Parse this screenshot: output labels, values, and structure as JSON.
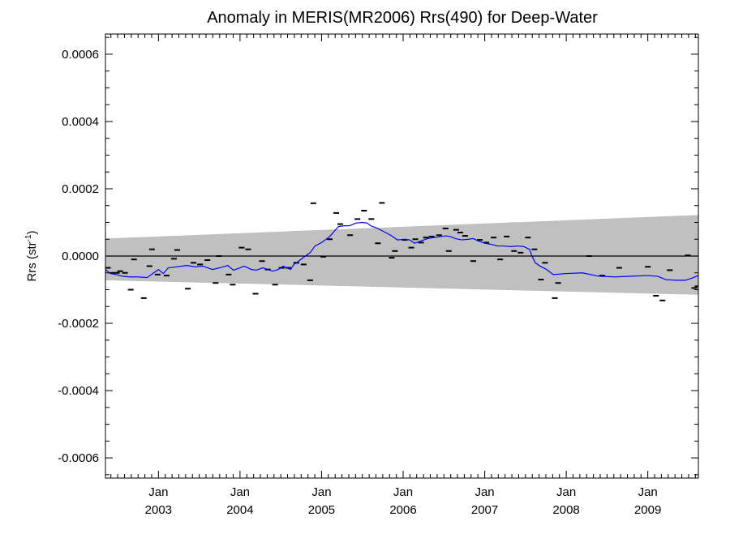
{
  "chart_data": {
    "type": "line",
    "title": "Anomaly in MERIS(MR2006) Rrs(490) for Deep-Water",
    "ylabel_main": "Rrs (str",
    "ylabel_sup": "-1",
    "ylabel_close": ")",
    "xlabel": "",
    "xlim": [
      2002.35,
      2009.62
    ],
    "ylim": [
      -0.00066,
      0.00066
    ],
    "grid": false,
    "y_ticks": [
      {
        "value": -0.0006,
        "label": "-0.0006"
      },
      {
        "value": -0.0004,
        "label": "-0.0004"
      },
      {
        "value": -0.0002,
        "label": "-0.0002"
      },
      {
        "value": 0.0,
        "label": "0.0000"
      },
      {
        "value": 0.0002,
        "label": "0.0002"
      },
      {
        "value": 0.0004,
        "label": "0.0004"
      },
      {
        "value": 0.0006,
        "label": "0.0006"
      }
    ],
    "x_ticks": [
      {
        "value": 2003.0,
        "month": "Jan",
        "year": "2003"
      },
      {
        "value": 2004.0,
        "month": "Jan",
        "year": "2004"
      },
      {
        "value": 2005.0,
        "month": "Jan",
        "year": "2005"
      },
      {
        "value": 2006.0,
        "month": "Jan",
        "year": "2006"
      },
      {
        "value": 2007.0,
        "month": "Jan",
        "year": "2007"
      },
      {
        "value": 2008.0,
        "month": "Jan",
        "year": "2008"
      },
      {
        "value": 2009.0,
        "month": "Jan",
        "year": "2009"
      }
    ],
    "band": {
      "color": "#c0c0c0",
      "x": [
        2002.35,
        2009.62
      ],
      "upper": [
        5.2e-05,
        0.000122
      ],
      "lower": [
        -7.2e-05,
        -0.000115
      ]
    },
    "zero_line": {
      "value": 0.0,
      "color": "#000000"
    },
    "series": [
      {
        "kind": "markers",
        "color": "#000000",
        "points": [
          [
            2002.38,
            -3.5e-05
          ],
          [
            2002.44,
            -5e-05
          ],
          [
            2002.49,
            -5e-05
          ],
          [
            2002.53,
            -4.5e-05
          ],
          [
            2002.59,
            -5e-05
          ],
          [
            2002.66,
            -0.0001
          ],
          [
            2002.7,
            -1e-05
          ],
          [
            2002.82,
            -0.000125
          ],
          [
            2002.89,
            -3e-05
          ],
          [
            2002.92,
            2e-05
          ],
          [
            2002.99,
            -5.5e-05
          ],
          [
            2003.1,
            -5.8e-05
          ],
          [
            2003.19,
            -8e-06
          ],
          [
            2003.23,
            1.8e-05
          ],
          [
            2003.36,
            -9.7e-05
          ],
          [
            2003.43,
            -2e-05
          ],
          [
            2003.51,
            -2.5e-05
          ],
          [
            2003.6,
            -1.2e-05
          ],
          [
            2003.7,
            -8e-05
          ],
          [
            2003.74,
            0.0
          ],
          [
            2003.86,
            -5.5e-05
          ],
          [
            2003.91,
            -8.5e-05
          ],
          [
            2004.02,
            2.5e-05
          ],
          [
            2004.1,
            2e-05
          ],
          [
            2004.19,
            -0.000112
          ],
          [
            2004.27,
            -1.5e-05
          ],
          [
            2004.34,
            -4e-05
          ],
          [
            2004.43,
            -8.5e-05
          ],
          [
            2004.51,
            -3.5e-05
          ],
          [
            2004.59,
            -3.5e-05
          ],
          [
            2004.69,
            -2e-05
          ],
          [
            2004.78,
            -2.5e-05
          ],
          [
            2004.86,
            -7.2e-05
          ],
          [
            2004.9,
            0.000157
          ],
          [
            2005.02,
            -2e-06
          ],
          [
            2005.1,
            5e-05
          ],
          [
            2005.18,
            0.000128
          ],
          [
            2005.23,
            9.5e-05
          ],
          [
            2005.35,
            6.2e-05
          ],
          [
            2005.44,
            0.00011
          ],
          [
            2005.52,
            0.000135
          ],
          [
            2005.61,
            0.00011
          ],
          [
            2005.69,
            3.8e-05
          ],
          [
            2005.74,
            0.000158
          ],
          [
            2005.86,
            -5e-06
          ],
          [
            2005.9,
            1.5e-05
          ],
          [
            2006.02,
            4.8e-05
          ],
          [
            2006.1,
            2.5e-05
          ],
          [
            2006.15,
            5e-05
          ],
          [
            2006.22,
            4e-05
          ],
          [
            2006.28,
            5.5e-05
          ],
          [
            2006.35,
            5.8e-05
          ],
          [
            2006.44,
            6.2e-05
          ],
          [
            2006.52,
            8.2e-05
          ],
          [
            2006.56,
            1.5e-05
          ],
          [
            2006.65,
            7.8e-05
          ],
          [
            2006.7,
            7e-05
          ],
          [
            2006.76,
            6e-05
          ],
          [
            2006.86,
            -1.5e-05
          ],
          [
            2006.94,
            4.8e-05
          ],
          [
            2007.02,
            4e-05
          ],
          [
            2007.11,
            5.5e-05
          ],
          [
            2007.19,
            -1e-05
          ],
          [
            2007.27,
            5.8e-05
          ],
          [
            2007.36,
            1.5e-05
          ],
          [
            2007.44,
            1e-05
          ],
          [
            2007.53,
            5.5e-05
          ],
          [
            2007.61,
            2e-05
          ],
          [
            2007.69,
            -7e-05
          ],
          [
            2007.74,
            -2e-05
          ],
          [
            2007.86,
            -0.000125
          ],
          [
            2007.9,
            -8e-05
          ],
          [
            2008.28,
            0.0
          ],
          [
            2008.44,
            -5.8e-05
          ],
          [
            2008.65,
            -3.5e-05
          ],
          [
            2009.0,
            -3.2e-05
          ],
          [
            2009.1,
            -0.000118
          ],
          [
            2009.18,
            -0.000132
          ],
          [
            2009.27,
            -4.2e-05
          ],
          [
            2009.49,
            2e-06
          ],
          [
            2009.57,
            -9.5e-05
          ],
          [
            2009.61,
            -9e-05
          ]
        ]
      },
      {
        "kind": "line",
        "color": "#0000ff",
        "points": [
          [
            2002.35,
            -4e-05
          ],
          [
            2002.41,
            -5.2e-05
          ],
          [
            2002.48,
            -5.5e-05
          ],
          [
            2002.56,
            -6e-05
          ],
          [
            2002.65,
            -6.2e-05
          ],
          [
            2002.75,
            -6.2e-05
          ],
          [
            2002.86,
            -6.4e-05
          ],
          [
            2002.93,
            -5.2e-05
          ],
          [
            2003.0,
            -4e-05
          ],
          [
            2003.06,
            -5.2e-05
          ],
          [
            2003.12,
            -3.5e-05
          ],
          [
            2003.22,
            -3.2e-05
          ],
          [
            2003.35,
            -2.8e-05
          ],
          [
            2003.45,
            -3.2e-05
          ],
          [
            2003.55,
            -3e-05
          ],
          [
            2003.66,
            -4e-05
          ],
          [
            2003.75,
            -3.5e-05
          ],
          [
            2003.85,
            -2.8e-05
          ],
          [
            2003.92,
            -4.2e-05
          ],
          [
            2004.0,
            -3.5e-05
          ],
          [
            2004.05,
            -3e-05
          ],
          [
            2004.14,
            -4e-05
          ],
          [
            2004.2,
            -4.2e-05
          ],
          [
            2004.28,
            -3.5e-05
          ],
          [
            2004.4,
            -4.5e-05
          ],
          [
            2004.47,
            -4e-05
          ],
          [
            2004.53,
            -3e-05
          ],
          [
            2004.62,
            -4e-05
          ],
          [
            2004.66,
            -2.5e-05
          ],
          [
            2004.72,
            -1.5e-05
          ],
          [
            2004.8,
            0.0
          ],
          [
            2004.86,
            1e-05
          ],
          [
            2004.92,
            3e-05
          ],
          [
            2005.0,
            4e-05
          ],
          [
            2005.1,
            5.8e-05
          ],
          [
            2005.16,
            7.5e-05
          ],
          [
            2005.21,
            8.8e-05
          ],
          [
            2005.28,
            9e-05
          ],
          [
            2005.34,
            9e-05
          ],
          [
            2005.42,
            9.8e-05
          ],
          [
            2005.5,
            0.0001
          ],
          [
            2005.56,
            9.8e-05
          ],
          [
            2005.6,
            9e-05
          ],
          [
            2005.66,
            8.5e-05
          ],
          [
            2005.72,
            7.8e-05
          ],
          [
            2005.8,
            6.8e-05
          ],
          [
            2005.86,
            6e-05
          ],
          [
            2005.93,
            4.8e-05
          ],
          [
            2006.02,
            5e-05
          ],
          [
            2006.08,
            4.8e-05
          ],
          [
            2006.14,
            3.8e-05
          ],
          [
            2006.22,
            4.5e-05
          ],
          [
            2006.3,
            5.2e-05
          ],
          [
            2006.38,
            5.5e-05
          ],
          [
            2006.46,
            5.8e-05
          ],
          [
            2006.52,
            6e-05
          ],
          [
            2006.58,
            5.8e-05
          ],
          [
            2006.64,
            5.2e-05
          ],
          [
            2006.72,
            4.8e-05
          ],
          [
            2006.8,
            5e-05
          ],
          [
            2006.86,
            5.2e-05
          ],
          [
            2006.92,
            4.5e-05
          ],
          [
            2007.0,
            3.8e-05
          ],
          [
            2007.08,
            3.5e-05
          ],
          [
            2007.16,
            3e-05
          ],
          [
            2007.24,
            3e-05
          ],
          [
            2007.32,
            2.8e-05
          ],
          [
            2007.4,
            3e-05
          ],
          [
            2007.48,
            2.8e-05
          ],
          [
            2007.55,
            2e-05
          ],
          [
            2007.58,
            0.0
          ],
          [
            2007.62,
            -2e-05
          ],
          [
            2007.68,
            -3e-05
          ],
          [
            2007.76,
            -4e-05
          ],
          [
            2007.84,
            -5.5e-05
          ],
          [
            2008.0,
            -5.2e-05
          ],
          [
            2008.2,
            -5e-05
          ],
          [
            2008.4,
            -6e-05
          ],
          [
            2008.6,
            -6.2e-05
          ],
          [
            2008.8,
            -6e-05
          ],
          [
            2009.0,
            -5.8e-05
          ],
          [
            2009.12,
            -6e-05
          ],
          [
            2009.22,
            -7e-05
          ],
          [
            2009.34,
            -7.2e-05
          ],
          [
            2009.46,
            -7.2e-05
          ],
          [
            2009.55,
            -6.5e-05
          ],
          [
            2009.62,
            -5.8e-05
          ]
        ]
      }
    ]
  }
}
